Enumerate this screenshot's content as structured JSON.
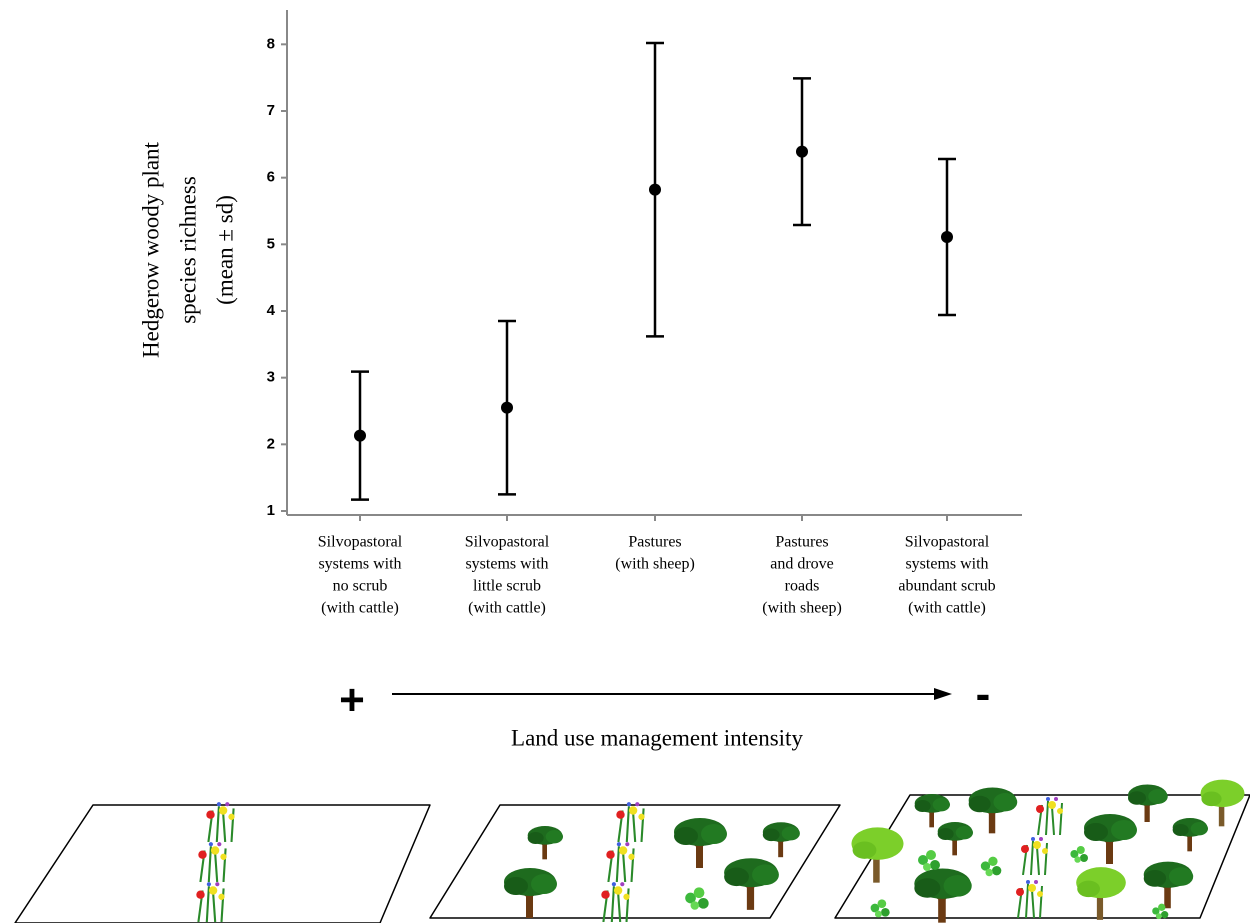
{
  "chart_data": {
    "type": "errorbar",
    "y_label_lines": [
      "Hedgerow woody plant",
      "species richness",
      "(mean ± sd)"
    ],
    "categories": [
      [
        "Silvopastoral",
        "systems with",
        "no scrub",
        "(with cattle)"
      ],
      [
        "Silvopastoral",
        "systems with",
        "little scrub",
        "(with cattle)"
      ],
      [
        "Pastures",
        "(with sheep)"
      ],
      [
        "Pastures",
        "and drove",
        "roads",
        "(with sheep)"
      ],
      [
        "Silvopastoral",
        "systems with",
        "abundant scrub",
        "(with cattle)"
      ]
    ],
    "values": [
      2.13,
      2.55,
      5.82,
      6.39,
      5.11
    ],
    "errors": [
      0.96,
      1.3,
      2.2,
      1.1,
      1.17
    ],
    "color": "#000000",
    "ylim": [
      1,
      8.5
    ],
    "yticks": [
      1,
      2,
      3,
      4,
      5,
      6,
      7,
      8
    ],
    "arrow_start_label": "+",
    "arrow_end_label": "-",
    "x_label": "Land use management intensity"
  }
}
